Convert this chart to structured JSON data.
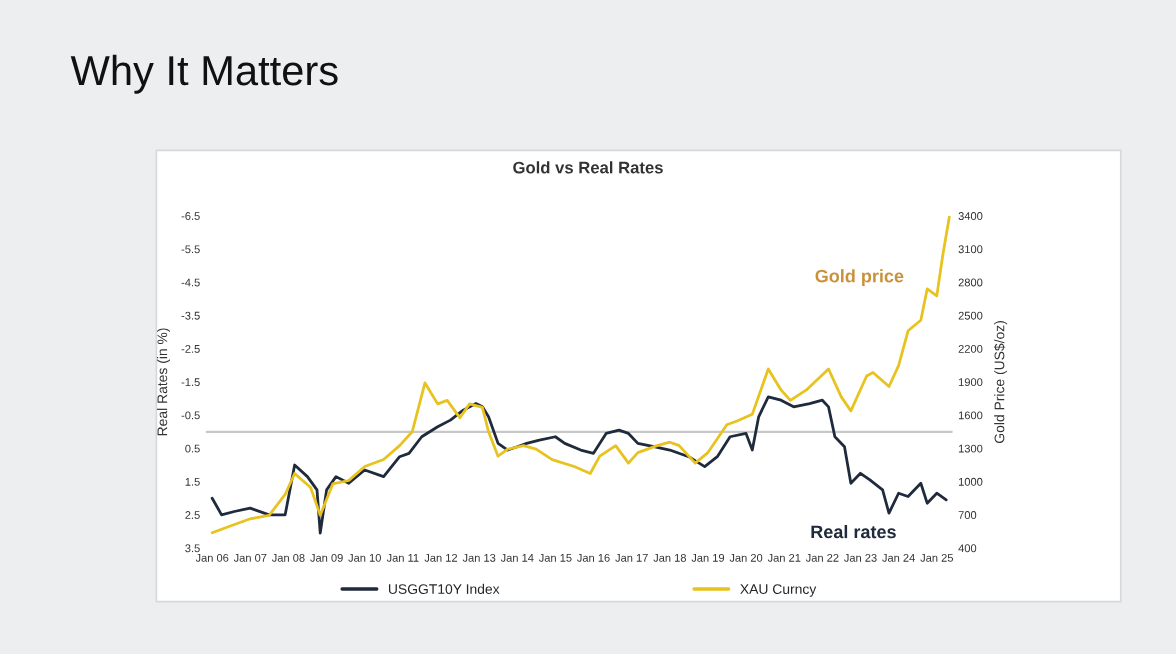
{
  "chart_data": {
    "type": "line",
    "title": "Why It Matters",
    "subtitle": "Gold vs Real Rates",
    "ylabel": "Real Rates (in %)",
    "y2label": "Gold Price (US$/oz)",
    "series": [
      {
        "name": "USGGT10Y Index",
        "color": "#1f2a3c",
        "axis": "y",
        "x": [
          "2006-01",
          "2006-04",
          "2006-08",
          "2007-01",
          "2007-07",
          "2007-12",
          "2008-03",
          "2008-07",
          "2008-10",
          "2008-11",
          "2009-01",
          "2009-04",
          "2009-08",
          "2010-01",
          "2010-07",
          "2010-12",
          "2011-03",
          "2011-07",
          "2011-12",
          "2012-04",
          "2012-08",
          "2012-12",
          "2013-02",
          "2013-04",
          "2013-07",
          "2013-10",
          "2014-01",
          "2014-04",
          "2014-08",
          "2015-01",
          "2015-04",
          "2015-09",
          "2016-01",
          "2016-05",
          "2016-09",
          "2016-12",
          "2017-03",
          "2017-08",
          "2018-01",
          "2018-07",
          "2018-12",
          "2019-04",
          "2019-08",
          "2020-01",
          "2020-03",
          "2020-05",
          "2020-08",
          "2020-12",
          "2021-04",
          "2021-09",
          "2022-01",
          "2022-03",
          "2022-05",
          "2022-08",
          "2022-10",
          "2023-01",
          "2023-04",
          "2023-08",
          "2023-10",
          "2024-01",
          "2024-04",
          "2024-08",
          "2024-10",
          "2025-01",
          "2025-04"
        ],
        "values": [
          2.0,
          2.5,
          2.4,
          2.3,
          2.5,
          2.5,
          1.0,
          1.35,
          1.75,
          3.05,
          1.75,
          1.35,
          1.55,
          1.15,
          1.35,
          0.75,
          0.65,
          0.15,
          -0.15,
          -0.35,
          -0.65,
          -0.85,
          -0.75,
          -0.45,
          0.35,
          0.55,
          0.45,
          0.35,
          0.25,
          0.15,
          0.35,
          0.55,
          0.65,
          0.05,
          -0.05,
          0.05,
          0.35,
          0.45,
          0.55,
          0.75,
          1.05,
          0.75,
          0.15,
          0.05,
          0.55,
          -0.45,
          -1.05,
          -0.95,
          -0.75,
          -0.85,
          -0.95,
          -0.75,
          0.15,
          0.45,
          1.55,
          1.25,
          1.45,
          1.75,
          2.45,
          1.85,
          1.95,
          1.55,
          2.15,
          1.85,
          2.05
        ]
      },
      {
        "name": "XAU Curncy",
        "color": "#e8c21e",
        "axis": "y2",
        "x": [
          "2006-01",
          "2006-07",
          "2007-01",
          "2007-07",
          "2007-12",
          "2008-03",
          "2008-08",
          "2008-11",
          "2009-03",
          "2009-08",
          "2010-01",
          "2010-07",
          "2010-12",
          "2011-04",
          "2011-08",
          "2011-12",
          "2012-03",
          "2012-07",
          "2012-10",
          "2013-02",
          "2013-04",
          "2013-07",
          "2013-10",
          "2014-03",
          "2014-07",
          "2014-12",
          "2015-07",
          "2015-12",
          "2016-03",
          "2016-08",
          "2016-12",
          "2017-03",
          "2017-09",
          "2018-01",
          "2018-04",
          "2018-09",
          "2019-01",
          "2019-07",
          "2019-10",
          "2020-03",
          "2020-08",
          "2020-12",
          "2021-03",
          "2021-08",
          "2022-03",
          "2022-07",
          "2022-10",
          "2023-03",
          "2023-05",
          "2023-10",
          "2024-01",
          "2024-04",
          "2024-08",
          "2024-10",
          "2025-01",
          "2025-03",
          "2025-05"
        ],
        "values": [
          538,
          601,
          664,
          696,
          884,
          1073,
          947,
          696,
          979,
          1010,
          1136,
          1199,
          1325,
          1450,
          1891,
          1702,
          1733,
          1576,
          1702,
          1670,
          1450,
          1230,
          1293,
          1325,
          1293,
          1199,
          1136,
          1073,
          1230,
          1325,
          1167,
          1262,
          1325,
          1356,
          1325,
          1167,
          1262,
          1513,
          1545,
          1608,
          2017,
          1828,
          1733,
          1828,
          2017,
          1765,
          1639,
          1954,
          1985,
          1859,
          2048,
          2362,
          2457,
          2740,
          2677,
          3054,
          3390
        ]
      }
    ],
    "xlim": [
      "2005-11",
      "2025-06"
    ],
    "xticks": [
      {
        "value": "2006-01",
        "label": "Jan 06"
      },
      {
        "value": "2007-01",
        "label": "Jan 07"
      },
      {
        "value": "2008-01",
        "label": "Jan 08"
      },
      {
        "value": "2009-01",
        "label": "Jan 09"
      },
      {
        "value": "2010-01",
        "label": "Jan 10"
      },
      {
        "value": "2011-01",
        "label": "Jan 11"
      },
      {
        "value": "2012-01",
        "label": "Jan 12"
      },
      {
        "value": "2013-01",
        "label": "Jan 13"
      },
      {
        "value": "2014-01",
        "label": "Jan 14"
      },
      {
        "value": "2015-01",
        "label": "Jan 15"
      },
      {
        "value": "2016-01",
        "label": "Jan 16"
      },
      {
        "value": "2017-01",
        "label": "Jan 17"
      },
      {
        "value": "2018-01",
        "label": "Jan 18"
      },
      {
        "value": "2019-01",
        "label": "Jan 19"
      },
      {
        "value": "2020-01",
        "label": "Jan 20"
      },
      {
        "value": "2021-01",
        "label": "Jan 21"
      },
      {
        "value": "2022-01",
        "label": "Jan 22"
      },
      {
        "value": "2023-01",
        "label": "Jan 23"
      },
      {
        "value": "2024-01",
        "label": "Jan 24"
      },
      {
        "value": "2025-01",
        "label": "Jan 25"
      }
    ],
    "ylim": [
      3.5,
      -6.5
    ],
    "yticks": [
      -6.5,
      -5.5,
      -4.5,
      -3.5,
      -2.5,
      -1.5,
      -0.5,
      0.5,
      1.5,
      2.5,
      3.5
    ],
    "y2lim": [
      400,
      3400
    ],
    "y2ticks": [
      400,
      700,
      1000,
      1300,
      1600,
      1900,
      2200,
      2500,
      2800,
      3100,
      3400
    ],
    "ref_lines": [
      {
        "axis": "y",
        "value": 0,
        "color": "#c8c8c8"
      }
    ],
    "annotations": [
      "Gold price",
      "Real rates"
    ],
    "legend": "bottom",
    "grid": false,
    "line_style": "solid",
    "marker": "none"
  }
}
